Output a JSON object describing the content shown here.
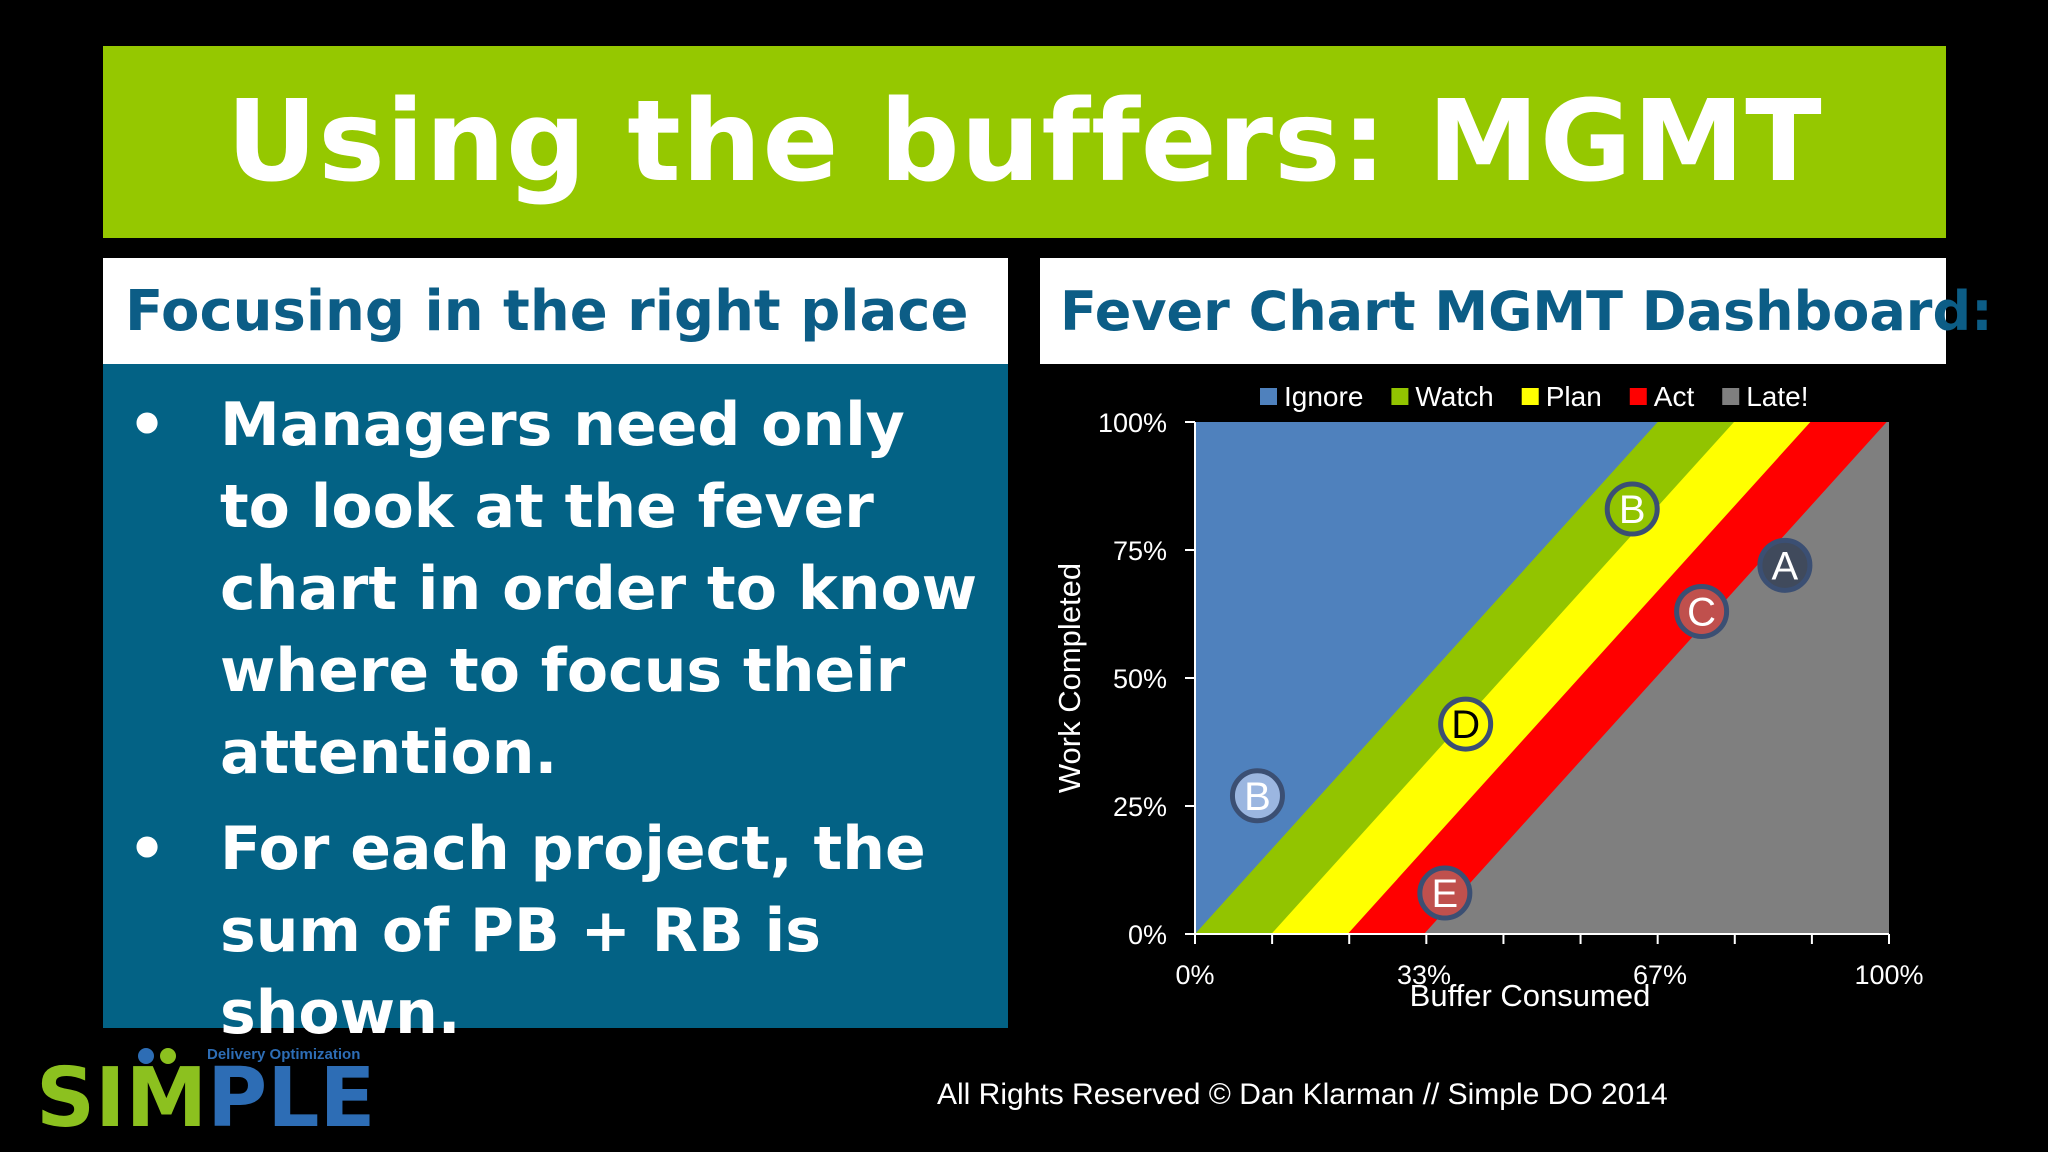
{
  "slide": {
    "title": "Using the buffers: MGMT",
    "left_heading": "Focusing in the right place",
    "bullets": [
      "Managers need only to look at the fever chart in order to know where to focus their attention.",
      "For each project, the sum of PB + RB is shown."
    ],
    "bullet_symbol": "•",
    "right_heading": "Fever Chart MGMT Dashboard:",
    "footer": "All Rights Reserved © Dan Klarman // Simple DO 2014",
    "logo": {
      "wordmark": "SIMPLE",
      "tagline": "Delivery Optimization"
    },
    "colors": {
      "title_bar": "#95c800",
      "heading_text": "#0c5d86",
      "bullet_panel": "#036285",
      "logo_green": "#8cc11f",
      "logo_blue": "#2d6db5"
    }
  },
  "chart_data": {
    "type": "area",
    "xlabel": "Buffer Consumed",
    "ylabel": "Work Completed",
    "x_ticks": [
      "0%",
      "33%",
      "67%",
      "100%"
    ],
    "y_ticks": [
      "0%",
      "25%",
      "50%",
      "75%",
      "100%"
    ],
    "xlim": [
      0,
      100
    ],
    "ylim": [
      0,
      100
    ],
    "legend_position": "top",
    "zones": [
      {
        "name": "Ignore",
        "color": "#4f81bd",
        "x_at_zero_work": -100
      },
      {
        "name": "Watch",
        "color": "#92c400",
        "x_at_zero_work": 0
      },
      {
        "name": "Plan",
        "color": "#ffff00",
        "x_at_zero_work": 11
      },
      {
        "name": "Act",
        "color": "#ff0000",
        "x_at_zero_work": 22
      },
      {
        "name": "Late!",
        "color": "#7f7f7f",
        "x_at_zero_work": 33
      }
    ],
    "boundary_slope": 1.5,
    "points": [
      {
        "label": "B",
        "x": 9,
        "y": 27,
        "color": "#9bb6e0"
      },
      {
        "label": "B",
        "x": 63,
        "y": 83,
        "color": "#92c400"
      },
      {
        "label": "D",
        "x": 39,
        "y": 41,
        "color": "#ffff00"
      },
      {
        "label": "E",
        "x": 36,
        "y": 8,
        "color": "#c0504d"
      },
      {
        "label": "C",
        "x": 73,
        "y": 63,
        "color": "#c0504d"
      },
      {
        "label": "A",
        "x": 85,
        "y": 72,
        "color": "#404a5c"
      }
    ]
  }
}
